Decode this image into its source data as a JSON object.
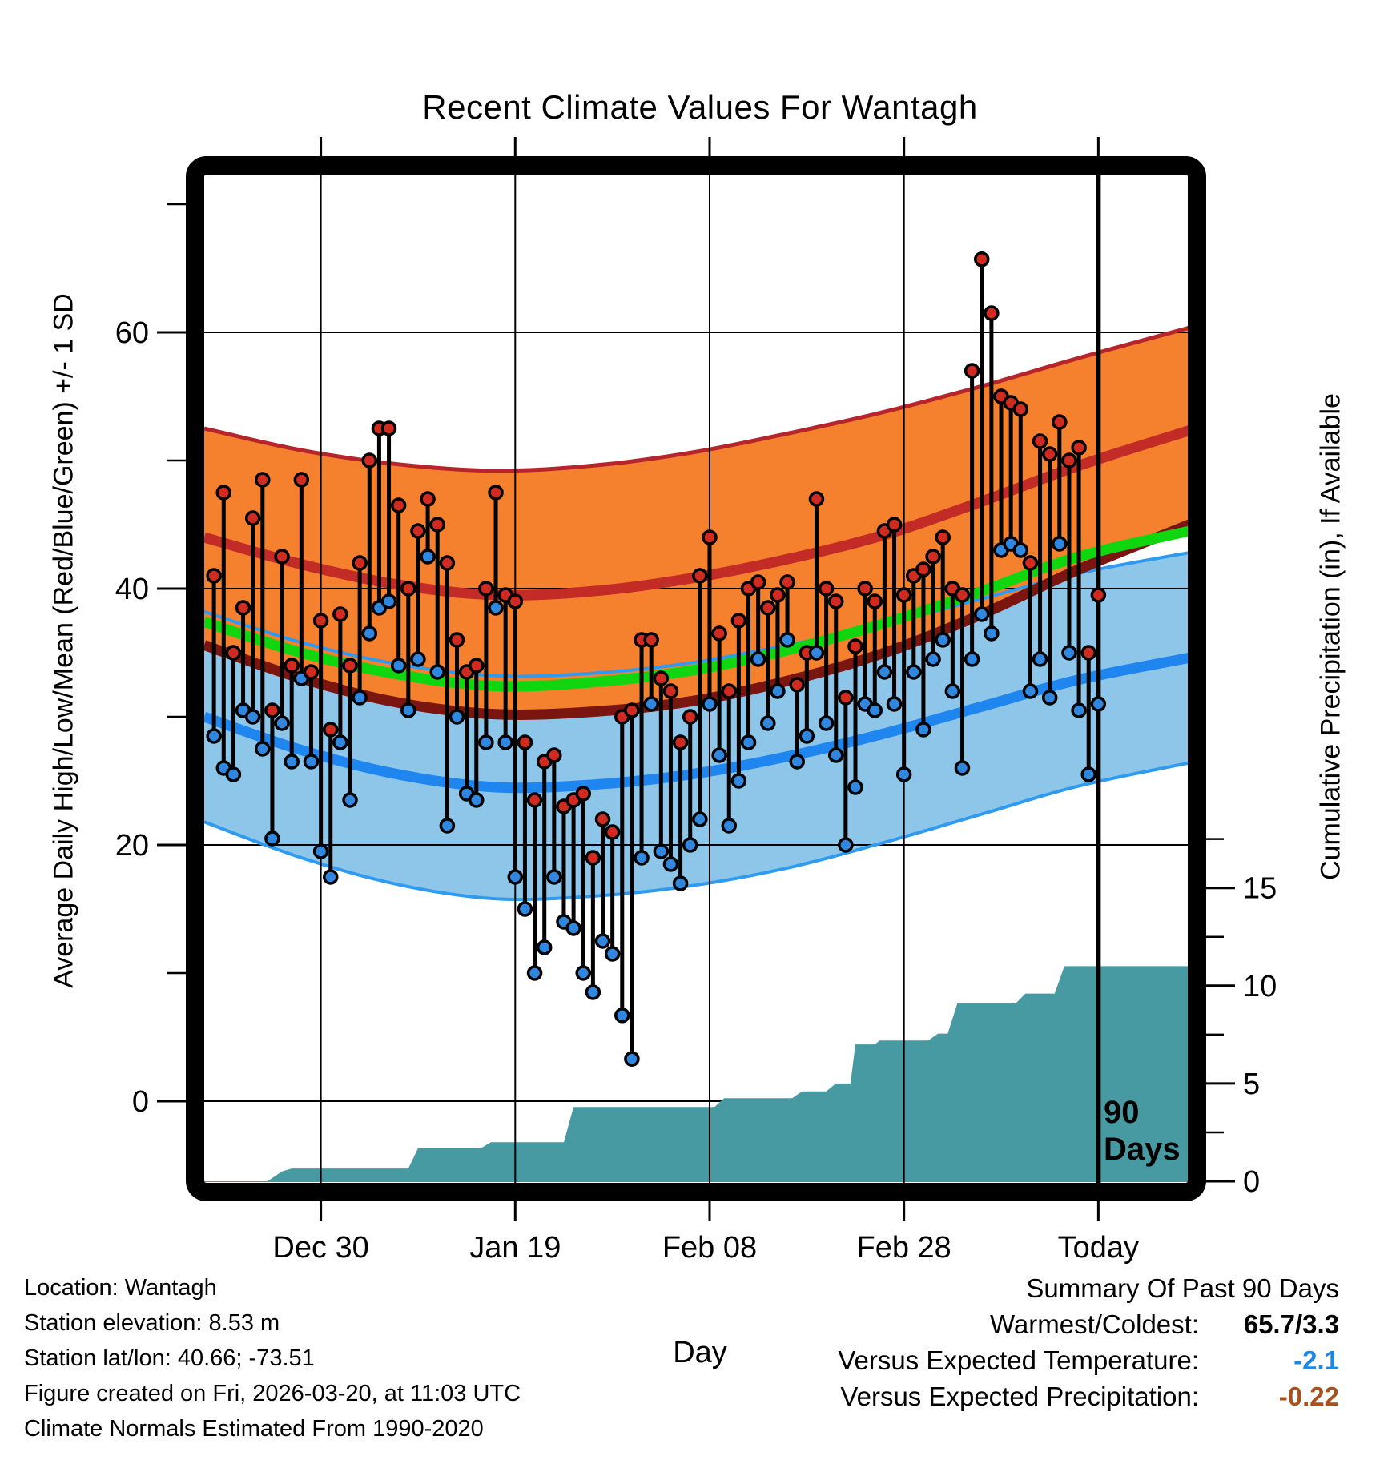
{
  "title": "Recent Climate Values For Wantagh",
  "axes": {
    "left_label": "Average Daily High/Low/Mean (Red/Blue/Green) +/- 1 SD",
    "right_label": "Cumulative Precipitation (in), If Available",
    "x_label": "Day"
  },
  "annotation_90_days": {
    "line1": "90",
    "line2": "Days",
    "day": 92
  },
  "footer": {
    "line1": "Location: Wantagh",
    "line2": "Station elevation: 8.53 m",
    "line3": "Station lat/lon: 40.66; -73.51",
    "line4": "Figure created on Fri, 2026-03-20, at 11:03 UTC",
    "line5": "Climate Normals Estimated From 1990-2020"
  },
  "summary": {
    "title": "Summary Of Past 90 Days",
    "rows": [
      {
        "label": "Warmest/Coldest:",
        "value": "65.7/3.3",
        "value_color": "#000000"
      },
      {
        "label": "Versus Expected Temperature:",
        "value": "-2.1",
        "value_color": "#1E88E5"
      },
      {
        "label": "Versus Expected Precipitation:",
        "value": "-0.22",
        "value_color": "#A5521E"
      }
    ]
  },
  "chart_data": {
    "type": "composite",
    "title": "Recent Climate Values For Wantagh",
    "xlabel": "Day",
    "ylabel_left": "Average Daily High/Low/Mean (Red/Blue/Green) +/- 1 SD",
    "ylabel_right": "Cumulative Precipitation (in), If Available",
    "x": {
      "day_range": [
        0,
        101.2
      ],
      "today_day": 92,
      "tick_days": [
        12,
        32,
        52,
        72,
        92
      ],
      "tick_labels": [
        "Dec 30",
        "Jan 19",
        "Feb 08",
        "Feb 28",
        "Today"
      ]
    },
    "temp_axis": {
      "range": [
        -6.4,
        72.3
      ],
      "major_ticks": [
        0,
        20,
        40,
        60
      ],
      "minor_ticks": [
        10,
        30,
        50,
        70
      ],
      "grid": true
    },
    "precip_axis": {
      "range": [
        0,
        51.5
      ],
      "major_ticks": [
        0,
        5,
        10,
        15
      ],
      "minor_ticks": [
        2.5,
        7.5,
        12.5,
        17.5
      ]
    },
    "climatology": {
      "days": [
        0,
        10,
        20,
        30,
        40,
        50,
        60,
        70,
        80,
        90,
        102
      ],
      "high_plus_sd": [
        52.5,
        50.8,
        49.7,
        49.2,
        49.6,
        50.6,
        52.1,
        53.8,
        55.8,
        58.0,
        60.5
      ],
      "avg_high": [
        44.0,
        41.9,
        40.3,
        39.5,
        39.8,
        40.8,
        42.3,
        44.2,
        46.8,
        49.6,
        52.5
      ],
      "high_minus_sd": [
        35.6,
        33.0,
        31.1,
        30.2,
        30.4,
        31.2,
        32.8,
        35.0,
        38.0,
        41.5,
        45.2
      ],
      "avg_mean": [
        37.4,
        35.0,
        33.3,
        32.4,
        32.7,
        33.6,
        35.2,
        37.3,
        39.8,
        42.5,
        44.6
      ],
      "low_plus_sd": [
        38.2,
        35.8,
        34.1,
        33.2,
        33.4,
        34.2,
        35.6,
        37.2,
        39.2,
        41.2,
        42.9
      ],
      "avg_low": [
        30.0,
        27.4,
        25.5,
        24.5,
        24.7,
        25.5,
        26.9,
        28.7,
        30.8,
        32.9,
        34.7
      ],
      "low_minus_sd": [
        21.8,
        19.0,
        16.9,
        15.8,
        16.0,
        16.8,
        18.2,
        20.2,
        22.4,
        24.6,
        26.5
      ]
    },
    "daily_high_low": [
      [
        1,
        41,
        28.5
      ],
      [
        2,
        47.5,
        26
      ],
      [
        3,
        35,
        25.5
      ],
      [
        4,
        38.5,
        30.5
      ],
      [
        5,
        45.5,
        30
      ],
      [
        6,
        48.5,
        27.5
      ],
      [
        7,
        30.5,
        20.5
      ],
      [
        8,
        42.5,
        29.5
      ],
      [
        9,
        34,
        26.5
      ],
      [
        10,
        48.5,
        33
      ],
      [
        11,
        33.5,
        26.5
      ],
      [
        12,
        37.5,
        19.5
      ],
      [
        13,
        29,
        17.5
      ],
      [
        14,
        38,
        28
      ],
      [
        15,
        34,
        23.5
      ],
      [
        16,
        42,
        31.5
      ],
      [
        17,
        50,
        36.5
      ],
      [
        18,
        52.5,
        38.5
      ],
      [
        19,
        52.5,
        39
      ],
      [
        20,
        46.5,
        34
      ],
      [
        21,
        40,
        30.5
      ],
      [
        22,
        44.5,
        34.5
      ],
      [
        23,
        47,
        42.5
      ],
      [
        24,
        45,
        33.5
      ],
      [
        25,
        42,
        21.5
      ],
      [
        26,
        36,
        30
      ],
      [
        27,
        33.5,
        24
      ],
      [
        28,
        34,
        23.5
      ],
      [
        29,
        40,
        28
      ],
      [
        30,
        47.5,
        38.5
      ],
      [
        31,
        39.5,
        28
      ],
      [
        32,
        39,
        17.5
      ],
      [
        33,
        28,
        15
      ],
      [
        34,
        23.5,
        10
      ],
      [
        35,
        26.5,
        12
      ],
      [
        36,
        27,
        17.5
      ],
      [
        37,
        23,
        14
      ],
      [
        38,
        23.5,
        13.5
      ],
      [
        39,
        24,
        10
      ],
      [
        40,
        19,
        8.5
      ],
      [
        41,
        22,
        12.5
      ],
      [
        42,
        21,
        11.5
      ],
      [
        43,
        30,
        6.7
      ],
      [
        44,
        30.5,
        3.3
      ],
      [
        45,
        36,
        19
      ],
      [
        46,
        36,
        31
      ],
      [
        47,
        33,
        19.5
      ],
      [
        48,
        32,
        18.5
      ],
      [
        49,
        28,
        17
      ],
      [
        50,
        30,
        20
      ],
      [
        51,
        41,
        22
      ],
      [
        52,
        44,
        31
      ],
      [
        53,
        36.5,
        27
      ],
      [
        54,
        32,
        21.5
      ],
      [
        55,
        37.5,
        25
      ],
      [
        56,
        40,
        28
      ],
      [
        57,
        40.5,
        34.5
      ],
      [
        58,
        38.5,
        29.5
      ],
      [
        59,
        39.5,
        32
      ],
      [
        60,
        40.5,
        36
      ],
      [
        61,
        32.5,
        26.5
      ],
      [
        62,
        35,
        28.5
      ],
      [
        63,
        47,
        35
      ],
      [
        64,
        40,
        29.5
      ],
      [
        65,
        39,
        27
      ],
      [
        66,
        31.5,
        20
      ],
      [
        67,
        35.5,
        24.5
      ],
      [
        68,
        40,
        31
      ],
      [
        69,
        39,
        30.5
      ],
      [
        70,
        44.5,
        33.5
      ],
      [
        71,
        45,
        31
      ],
      [
        72,
        39.5,
        25.5
      ],
      [
        73,
        41,
        33.5
      ],
      [
        74,
        41.5,
        29
      ],
      [
        75,
        42.5,
        34.5
      ],
      [
        76,
        44,
        36
      ],
      [
        77,
        40,
        32
      ],
      [
        78,
        39.5,
        26
      ],
      [
        79,
        57,
        34.5
      ],
      [
        80,
        65.7,
        38
      ],
      [
        81,
        61.5,
        36.5
      ],
      [
        82,
        55,
        43
      ],
      [
        83,
        54.5,
        43.5
      ],
      [
        84,
        54,
        43
      ],
      [
        85,
        42,
        32
      ],
      [
        86,
        51.5,
        34.5
      ],
      [
        87,
        50.5,
        31.5
      ],
      [
        88,
        53,
        43.5
      ],
      [
        89,
        50,
        35
      ],
      [
        90,
        51,
        30.5
      ],
      [
        91,
        35,
        25.5
      ],
      [
        92,
        39.5,
        31
      ]
    ],
    "cumulative_precip": [
      [
        0,
        0
      ],
      [
        6.5,
        0
      ],
      [
        8,
        0.5
      ],
      [
        9,
        0.65
      ],
      [
        21,
        0.65
      ],
      [
        22,
        1.7
      ],
      [
        28.5,
        1.7
      ],
      [
        29.5,
        2.0
      ],
      [
        37,
        2.0
      ],
      [
        38,
        3.8
      ],
      [
        52.5,
        3.8
      ],
      [
        53.5,
        4.25
      ],
      [
        60.5,
        4.25
      ],
      [
        61.5,
        4.6
      ],
      [
        64,
        4.6
      ],
      [
        65,
        5.0
      ],
      [
        66.5,
        5.0
      ],
      [
        67,
        7.0
      ],
      [
        69,
        7.0
      ],
      [
        69.5,
        7.2
      ],
      [
        74.5,
        7.2
      ],
      [
        75.5,
        7.55
      ],
      [
        76.5,
        7.55
      ],
      [
        77.5,
        9.1
      ],
      [
        83.5,
        9.1
      ],
      [
        84.5,
        9.6
      ],
      [
        87.5,
        9.6
      ],
      [
        88.5,
        11.0
      ],
      [
        101.2,
        11.0
      ]
    ],
    "summary_stats": {
      "warmest": 65.7,
      "coldest": 3.3,
      "vs_expected_temperature": -2.1,
      "vs_expected_precipitation": -0.22
    },
    "colors": {
      "high_band_fill": "#F5812F",
      "high_band_edge": "#B6252B",
      "avg_high_line": "#C22B26",
      "high_minus_sd_line": "#7A150F",
      "mean_line": "#0FD60F",
      "low_band_fill": "#8EC6EA",
      "low_band_edge": "#2E9BF0",
      "avg_low_line": "#1E86EE",
      "high_dot": "#CF2B20",
      "low_dot": "#2F87E0",
      "precip_fill": "#489AA2",
      "grid": "#000000"
    }
  }
}
